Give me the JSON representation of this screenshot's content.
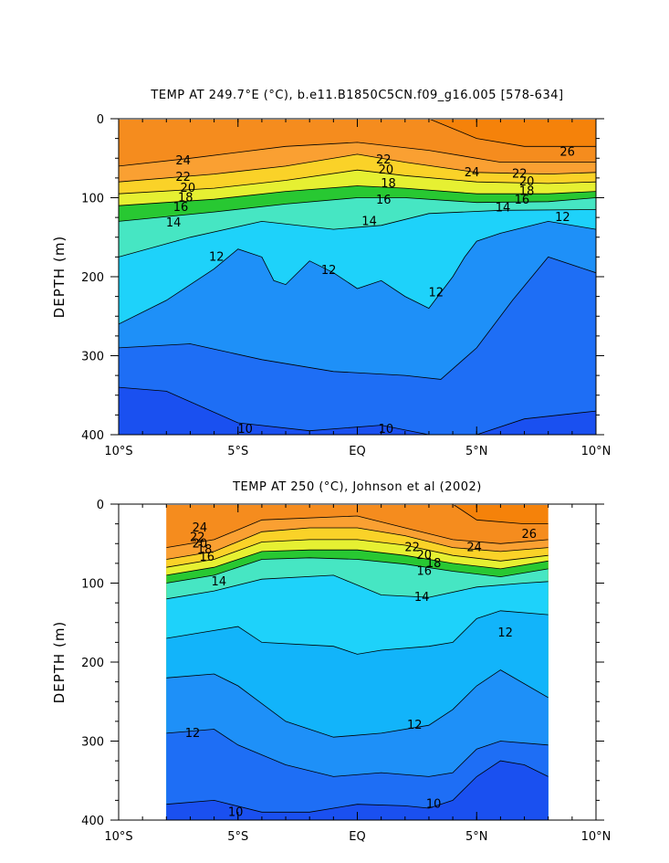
{
  "chart_data": [
    {
      "type": "contour",
      "title": "TEMP AT 249.7°E (°C), b.e11.B1850C5CN.f09_g16.005 [578-634]",
      "ylabel": "DEPTH (m)",
      "xlim": [
        -10,
        10
      ],
      "ylim": [
        400,
        0
      ],
      "x_ticks": [
        {
          "value": -10,
          "label": "10°S"
        },
        {
          "value": -5,
          "label": "5°S"
        },
        {
          "value": 0,
          "label": "EQ"
        },
        {
          "value": 5,
          "label": "5°N"
        },
        {
          "value": 10,
          "label": "10°N"
        }
      ],
      "y_ticks": [
        {
          "value": 0,
          "label": "0"
        },
        {
          "value": 100,
          "label": "100"
        },
        {
          "value": 200,
          "label": "200"
        },
        {
          "value": 300,
          "label": "300"
        },
        {
          "value": 400,
          "label": "400"
        }
      ],
      "data_x_range": [
        -10,
        10
      ],
      "contour_interval": 1,
      "contours": [
        {
          "level": 26,
          "points": [
            [
              3,
              0
            ],
            [
              5,
              25
            ],
            [
              7,
              35
            ],
            [
              9.5,
              35
            ],
            [
              10,
              35
            ]
          ]
        },
        {
          "level": 24,
          "points": [
            [
              -10,
              60
            ],
            [
              -7,
              50
            ],
            [
              -3,
              35
            ],
            [
              0,
              30
            ],
            [
              3,
              40
            ],
            [
              6,
              55
            ],
            [
              10,
              55
            ]
          ]
        },
        {
          "level": 22,
          "points": [
            [
              -10,
              80
            ],
            [
              -6,
              70
            ],
            [
              -3,
              60
            ],
            [
              0,
              45
            ],
            [
              2,
              55
            ],
            [
              5,
              68
            ],
            [
              8,
              70
            ],
            [
              10,
              68
            ]
          ]
        },
        {
          "level": 20,
          "points": [
            [
              -10,
              95
            ],
            [
              -6,
              88
            ],
            [
              -3,
              78
            ],
            [
              0,
              65
            ],
            [
              2,
              72
            ],
            [
              5,
              80
            ],
            [
              8,
              82
            ],
            [
              10,
              80
            ]
          ]
        },
        {
          "level": 18,
          "points": [
            [
              -10,
              110
            ],
            [
              -6,
              102
            ],
            [
              -3,
              92
            ],
            [
              0,
              85
            ],
            [
              2,
              88
            ],
            [
              5,
              95
            ],
            [
              8,
              95
            ],
            [
              10,
              92
            ]
          ]
        },
        {
          "level": 16,
          "points": [
            [
              -10,
              130
            ],
            [
              -6,
              118
            ],
            [
              -3,
              108
            ],
            [
              0,
              100
            ],
            [
              2,
              100
            ],
            [
              5,
              106
            ],
            [
              8,
              105
            ],
            [
              10,
              100
            ]
          ]
        },
        {
          "level": 14,
          "points": [
            [
              -10,
              175
            ],
            [
              -7,
              150
            ],
            [
              -4,
              130
            ],
            [
              -1,
              140
            ],
            [
              1,
              135
            ],
            [
              3,
              120
            ],
            [
              6,
              116
            ],
            [
              10,
              115
            ]
          ]
        },
        {
          "level": 12,
          "points": [
            [
              -10,
              260
            ],
            [
              -8,
              230
            ],
            [
              -6,
              190
            ],
            [
              -5,
              165
            ],
            [
              -4,
              175
            ],
            [
              -3.5,
              205
            ],
            [
              -3,
              210
            ],
            [
              -2,
              180
            ],
            [
              -1,
              195
            ],
            [
              0,
              215
            ],
            [
              1,
              205
            ],
            [
              2,
              225
            ],
            [
              3,
              240
            ],
            [
              4,
              200
            ],
            [
              4.5,
              175
            ],
            [
              5,
              155
            ],
            [
              6,
              145
            ],
            [
              8,
              130
            ],
            [
              10,
              140
            ]
          ]
        },
        {
          "level": 11,
          "points": [
            [
              -10,
              290
            ],
            [
              -7,
              285
            ],
            [
              -4,
              305
            ],
            [
              -1,
              320
            ],
            [
              2,
              325
            ],
            [
              3.5,
              330
            ],
            [
              5,
              290
            ],
            [
              6.5,
              230
            ],
            [
              8,
              175
            ],
            [
              10,
              195
            ]
          ]
        },
        {
          "level": 10,
          "points": [
            [
              -10,
              340
            ],
            [
              -8,
              345
            ],
            [
              -5,
              385
            ],
            [
              -2,
              395
            ],
            [
              1,
              388
            ],
            [
              3,
              400
            ],
            [
              5,
              400
            ],
            [
              7,
              380
            ],
            [
              10,
              370
            ]
          ]
        }
      ],
      "contour_labels": [
        {
          "text": "26",
          "x": 8.8,
          "y": 42
        },
        {
          "text": "24",
          "x": -7.3,
          "y": 53
        },
        {
          "text": "24",
          "x": 4.8,
          "y": 68
        },
        {
          "text": "22",
          "x": -7.3,
          "y": 74
        },
        {
          "text": "22",
          "x": 1.1,
          "y": 52
        },
        {
          "text": "22",
          "x": 6.8,
          "y": 70
        },
        {
          "text": "20",
          "x": -7.1,
          "y": 88
        },
        {
          "text": "20",
          "x": 1.2,
          "y": 65
        },
        {
          "text": "20",
          "x": 7.1,
          "y": 80
        },
        {
          "text": "18",
          "x": -7.2,
          "y": 100
        },
        {
          "text": "18",
          "x": 1.3,
          "y": 82
        },
        {
          "text": "18",
          "x": 7.1,
          "y": 92
        },
        {
          "text": "16",
          "x": -7.4,
          "y": 112
        },
        {
          "text": "16",
          "x": 1.1,
          "y": 103
        },
        {
          "text": "16",
          "x": 6.9,
          "y": 103
        },
        {
          "text": "14",
          "x": -7.7,
          "y": 132
        },
        {
          "text": "14",
          "x": 0.5,
          "y": 130
        },
        {
          "text": "14",
          "x": 6.1,
          "y": 113
        },
        {
          "text": "12",
          "x": -5.9,
          "y": 175
        },
        {
          "text": "12",
          "x": -1.2,
          "y": 192
        },
        {
          "text": "12",
          "x": 3.3,
          "y": 220
        },
        {
          "text": "12",
          "x": 8.6,
          "y": 125
        },
        {
          "text": "10",
          "x": -4.7,
          "y": 393
        },
        {
          "text": "10",
          "x": 1.2,
          "y": 393
        }
      ]
    },
    {
      "type": "contour",
      "title": "TEMP AT 250 (°C), Johnson et al (2002)",
      "ylabel": "DEPTH (m)",
      "xlim": [
        -10,
        10
      ],
      "ylim": [
        400,
        0
      ],
      "x_ticks": [
        {
          "value": -10,
          "label": "10°S"
        },
        {
          "value": -5,
          "label": "5°S"
        },
        {
          "value": 0,
          "label": "EQ"
        },
        {
          "value": 5,
          "label": "5°N"
        },
        {
          "value": 10,
          "label": "10°N"
        }
      ],
      "y_ticks": [
        {
          "value": 0,
          "label": "0"
        },
        {
          "value": 100,
          "label": "100"
        },
        {
          "value": 200,
          "label": "200"
        },
        {
          "value": 300,
          "label": "300"
        },
        {
          "value": 400,
          "label": "400"
        }
      ],
      "data_x_range": [
        -8,
        8
      ],
      "contour_interval": 1,
      "contours": [
        {
          "level": 26,
          "points": [
            [
              4,
              0
            ],
            [
              5,
              20
            ],
            [
              7,
              25
            ],
            [
              8,
              25
            ]
          ]
        },
        {
          "level": 24,
          "points": [
            [
              -8,
              55
            ],
            [
              -6,
              45
            ],
            [
              -4,
              20
            ],
            [
              0,
              15
            ],
            [
              2,
              30
            ],
            [
              4,
              45
            ],
            [
              6,
              50
            ],
            [
              8,
              45
            ]
          ]
        },
        {
          "level": 22,
          "points": [
            [
              -8,
              70
            ],
            [
              -6,
              60
            ],
            [
              -4,
              35
            ],
            [
              -2,
              30
            ],
            [
              0,
              30
            ],
            [
              2,
              40
            ],
            [
              4,
              55
            ],
            [
              6,
              60
            ],
            [
              8,
              55
            ]
          ]
        },
        {
          "level": 20,
          "points": [
            [
              -8,
              80
            ],
            [
              -6,
              70
            ],
            [
              -4,
              48
            ],
            [
              -2,
              45
            ],
            [
              0,
              45
            ],
            [
              2,
              52
            ],
            [
              4,
              65
            ],
            [
              6,
              72
            ],
            [
              8,
              65
            ]
          ]
        },
        {
          "level": 18,
          "points": [
            [
              -8,
              90
            ],
            [
              -6,
              80
            ],
            [
              -4,
              60
            ],
            [
              -2,
              58
            ],
            [
              0,
              58
            ],
            [
              2,
              65
            ],
            [
              4,
              75
            ],
            [
              6,
              82
            ],
            [
              8,
              72
            ]
          ]
        },
        {
          "level": 16,
          "points": [
            [
              -8,
              100
            ],
            [
              -6,
              90
            ],
            [
              -4,
              70
            ],
            [
              -2,
              68
            ],
            [
              0,
              70
            ],
            [
              2,
              76
            ],
            [
              4,
              85
            ],
            [
              6,
              92
            ],
            [
              8,
              82
            ]
          ]
        },
        {
          "level": 14,
          "points": [
            [
              -8,
              120
            ],
            [
              -6,
              110
            ],
            [
              -4,
              95
            ],
            [
              -1,
              90
            ],
            [
              1,
              115
            ],
            [
              3,
              118
            ],
            [
              5,
              105
            ],
            [
              7,
              100
            ],
            [
              8,
              98
            ]
          ]
        },
        {
          "level": 13,
          "points": [
            [
              -8,
              170
            ],
            [
              -6,
              160
            ],
            [
              -5,
              155
            ],
            [
              -4,
              175
            ],
            [
              -1,
              180
            ],
            [
              0,
              190
            ],
            [
              1,
              185
            ],
            [
              3,
              180
            ],
            [
              4,
              175
            ],
            [
              5,
              145
            ],
            [
              6,
              135
            ],
            [
              8,
              140
            ]
          ]
        },
        {
          "level": 12,
          "points": [
            [
              -8,
              220
            ],
            [
              -6,
              215
            ],
            [
              -5,
              230
            ],
            [
              -3,
              275
            ],
            [
              -1,
              295
            ],
            [
              1,
              290
            ],
            [
              3,
              280
            ],
            [
              4,
              260
            ],
            [
              5,
              230
            ],
            [
              6,
              210
            ],
            [
              8,
              245
            ]
          ]
        },
        {
          "level": 11,
          "points": [
            [
              -8,
              290
            ],
            [
              -6,
              285
            ],
            [
              -5,
              305
            ],
            [
              -3,
              330
            ],
            [
              -1,
              345
            ],
            [
              1,
              340
            ],
            [
              3,
              345
            ],
            [
              4,
              340
            ],
            [
              5,
              310
            ],
            [
              6,
              300
            ],
            [
              8,
              305
            ]
          ]
        },
        {
          "level": 10,
          "points": [
            [
              -8,
              380
            ],
            [
              -6,
              375
            ],
            [
              -4,
              390
            ],
            [
              -2,
              390
            ],
            [
              0,
              380
            ],
            [
              2,
              382
            ],
            [
              3,
              385
            ],
            [
              4,
              375
            ],
            [
              5,
              345
            ],
            [
              6,
              325
            ],
            [
              7,
              330
            ],
            [
              8,
              345
            ]
          ]
        }
      ],
      "contour_labels": [
        {
          "text": "24",
          "x": -6.6,
          "y": 30
        },
        {
          "text": "24",
          "x": 4.9,
          "y": 55
        },
        {
          "text": "26",
          "x": 7.2,
          "y": 38
        },
        {
          "text": "22",
          "x": -6.7,
          "y": 42
        },
        {
          "text": "22",
          "x": 2.3,
          "y": 55
        },
        {
          "text": "20",
          "x": -6.6,
          "y": 50
        },
        {
          "text": "20",
          "x": 2.8,
          "y": 65
        },
        {
          "text": "18",
          "x": -6.4,
          "y": 58
        },
        {
          "text": "18",
          "x": 3.2,
          "y": 75
        },
        {
          "text": "16",
          "x": -6.3,
          "y": 67
        },
        {
          "text": "16",
          "x": 2.8,
          "y": 85
        },
        {
          "text": "14",
          "x": -5.8,
          "y": 98
        },
        {
          "text": "14",
          "x": 2.7,
          "y": 118
        },
        {
          "text": "12",
          "x": -6.9,
          "y": 290
        },
        {
          "text": "12",
          "x": 2.4,
          "y": 280
        },
        {
          "text": "12",
          "x": 6.2,
          "y": 163
        },
        {
          "text": "10",
          "x": -5.1,
          "y": 390
        },
        {
          "text": "10",
          "x": 3.2,
          "y": 380
        }
      ]
    }
  ]
}
